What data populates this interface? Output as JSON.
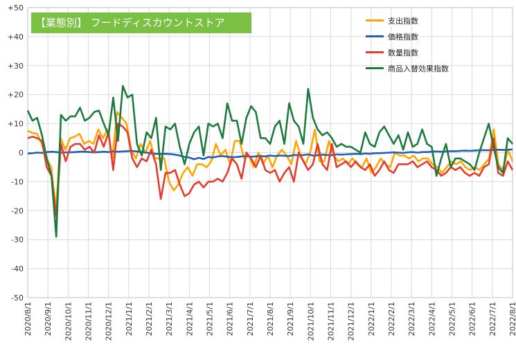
{
  "chart_data": {
    "type": "line",
    "title": "【業態別】 フードディスカウントストア",
    "xlabel": "",
    "ylabel": "",
    "ylim": [
      -50,
      50
    ],
    "ytick_labels": [
      "+50",
      "+40",
      "+30",
      "+20",
      "+10",
      "0",
      "-10",
      "-20",
      "-30",
      "-40",
      "-50"
    ],
    "ytick_values": [
      50,
      40,
      30,
      20,
      10,
      0,
      -10,
      -20,
      -30,
      -40,
      -50
    ],
    "x_tick_labels": [
      "2020/8/1",
      "2020/9/1",
      "2020/10/1",
      "2020/11/1",
      "2020/12/1",
      "2021/1/1",
      "2021/2/1",
      "2021/3/1",
      "2021/4/1",
      "2021/5/1",
      "2021/6/1",
      "2021/7/1",
      "2021/8/1",
      "2021/9/1",
      "2021/10/1",
      "2021/11/1",
      "2021/12/1",
      "2022/1/1",
      "2022/2/1",
      "2022/3/1",
      "2022/4/1",
      "2022/5/1",
      "2022/6/1",
      "2022/7/1",
      "2022/8/1"
    ],
    "legend_position": "top-right",
    "grid": true,
    "series": [
      {
        "name": "支出指数",
        "color": "#ffa500",
        "values": [
          7.5,
          6.8,
          6.5,
          3,
          -2,
          -5,
          -20,
          5,
          1,
          5,
          5.5,
          6.5,
          3,
          4,
          3,
          8,
          5,
          8,
          -2,
          14,
          12,
          10,
          1,
          -2,
          3,
          0,
          4,
          -2,
          -2,
          -2,
          -10,
          -13,
          -11,
          -7,
          -5,
          -8,
          -4,
          -4,
          -5,
          -3,
          3,
          -1,
          1,
          -4,
          4,
          4,
          -2,
          -1,
          -5,
          0,
          -4,
          -1,
          -5,
          -1,
          1,
          -1,
          -4,
          4,
          -1,
          -4,
          0,
          8,
          -3,
          -3,
          4,
          -1,
          -3,
          -2,
          -4,
          -2,
          -4,
          -5,
          -2,
          -7,
          -5,
          -2,
          -4,
          -5,
          0,
          -1,
          -1,
          -2,
          -1,
          -3,
          -2,
          -2,
          -4,
          -5,
          -7,
          -5,
          -3,
          -4,
          -3,
          -5,
          -6,
          -5,
          -6,
          -4,
          -2,
          8,
          -4,
          -6,
          1,
          -3
        ]
      },
      {
        "name": "価格指数",
        "color": "#1f5fb5",
        "values": [
          -0.3,
          -0.2,
          0,
          -0.1,
          0.2,
          0.3,
          0.2,
          0,
          0.1,
          0.1,
          0.2,
          0.3,
          0.3,
          0.2,
          0.1,
          0.2,
          0.3,
          0.2,
          0.4,
          0.3,
          0.4,
          0.5,
          0.6,
          0.4,
          0.2,
          0,
          -0.3,
          -0.4,
          -0.5,
          -0.4,
          -0.5,
          -0.7,
          -1,
          -1.5,
          -1.7,
          -2.3,
          -1.8,
          -2.2,
          -1.5,
          -1.7,
          -1.3,
          -1.2,
          -1.4,
          -1.6,
          -1.5,
          -1.3,
          -1.2,
          -1.4,
          -1.3,
          -1.2,
          -1.3,
          -1,
          -1.2,
          -1,
          -1.1,
          -1.2,
          -0.8,
          -0.9,
          -0.8,
          -0.6,
          -1,
          -0.9,
          -0.7,
          -0.8,
          -0.9,
          -0.6,
          -0.7,
          -0.6,
          -0.5,
          -0.4,
          -0.5,
          -0.3,
          -0.4,
          -0.2,
          -0.2,
          -0.1,
          0,
          0.1,
          0,
          -0.1,
          0.1,
          0.2,
          0,
          0.2,
          0.2,
          0.3,
          0.4,
          0.3,
          0.4,
          0.5,
          0.5,
          0.6,
          0.7,
          0.6,
          0.7,
          0.8,
          0.8,
          0.8,
          0.9,
          1,
          0.9,
          1,
          1.1
        ]
      },
      {
        "name": "数量指数",
        "color": "#e43b2c",
        "values": [
          5,
          5.5,
          5,
          4,
          -5,
          -8,
          -22,
          3,
          -3,
          2,
          3,
          3,
          1,
          2,
          0,
          6,
          2,
          7,
          -6,
          10,
          9,
          7,
          -2,
          -5,
          -2,
          -3,
          1,
          -4,
          -16,
          -7,
          -7,
          -6,
          -11,
          -15,
          -14,
          -11,
          -10,
          -12,
          -10,
          -10,
          -9,
          -10,
          -7,
          -2,
          -4,
          -9,
          0,
          -2,
          -5,
          -1,
          -6,
          -7,
          -6,
          -10,
          -7,
          -5,
          -10,
          0,
          -3,
          -6,
          -4,
          3,
          -4,
          -6,
          3,
          -5,
          -4,
          -3,
          -5,
          -3,
          -5,
          -6,
          -4,
          -8,
          -6,
          -3,
          -6,
          -7,
          -4,
          -4,
          -4,
          -3,
          -5,
          -4,
          -3,
          -5,
          -6,
          -8,
          -7,
          -5,
          -6,
          -5,
          -7,
          -8,
          -7,
          -8,
          -5,
          -4,
          5,
          -7,
          -8,
          -3,
          -6
        ]
      },
      {
        "name": "商品入替効果指数",
        "color": "#1b7a3e",
        "values": [
          14.5,
          11,
          12,
          6,
          -2,
          -8,
          -29,
          13,
          11,
          12.5,
          12.5,
          15.5,
          11,
          12,
          14,
          14.5,
          10,
          6,
          19,
          4,
          23,
          19,
          20,
          3,
          -1,
          7,
          5,
          12,
          -6,
          9,
          8,
          10,
          2,
          -4,
          3,
          7,
          9,
          -1,
          10,
          9,
          10,
          5,
          17,
          11,
          11,
          3,
          12,
          16,
          14,
          5,
          5,
          3,
          9,
          11,
          3,
          17,
          11,
          9,
          3,
          22,
          12,
          8,
          6,
          7,
          5,
          2,
          3,
          2,
          2,
          1,
          0,
          7,
          3,
          2,
          7,
          9,
          6,
          3,
          6,
          1,
          7,
          2,
          3,
          8,
          3,
          2,
          -8,
          -2,
          3,
          -5,
          -2,
          -2,
          -3,
          -4,
          -6,
          0,
          5,
          10,
          2,
          -5,
          -7,
          5,
          3
        ]
      }
    ]
  }
}
